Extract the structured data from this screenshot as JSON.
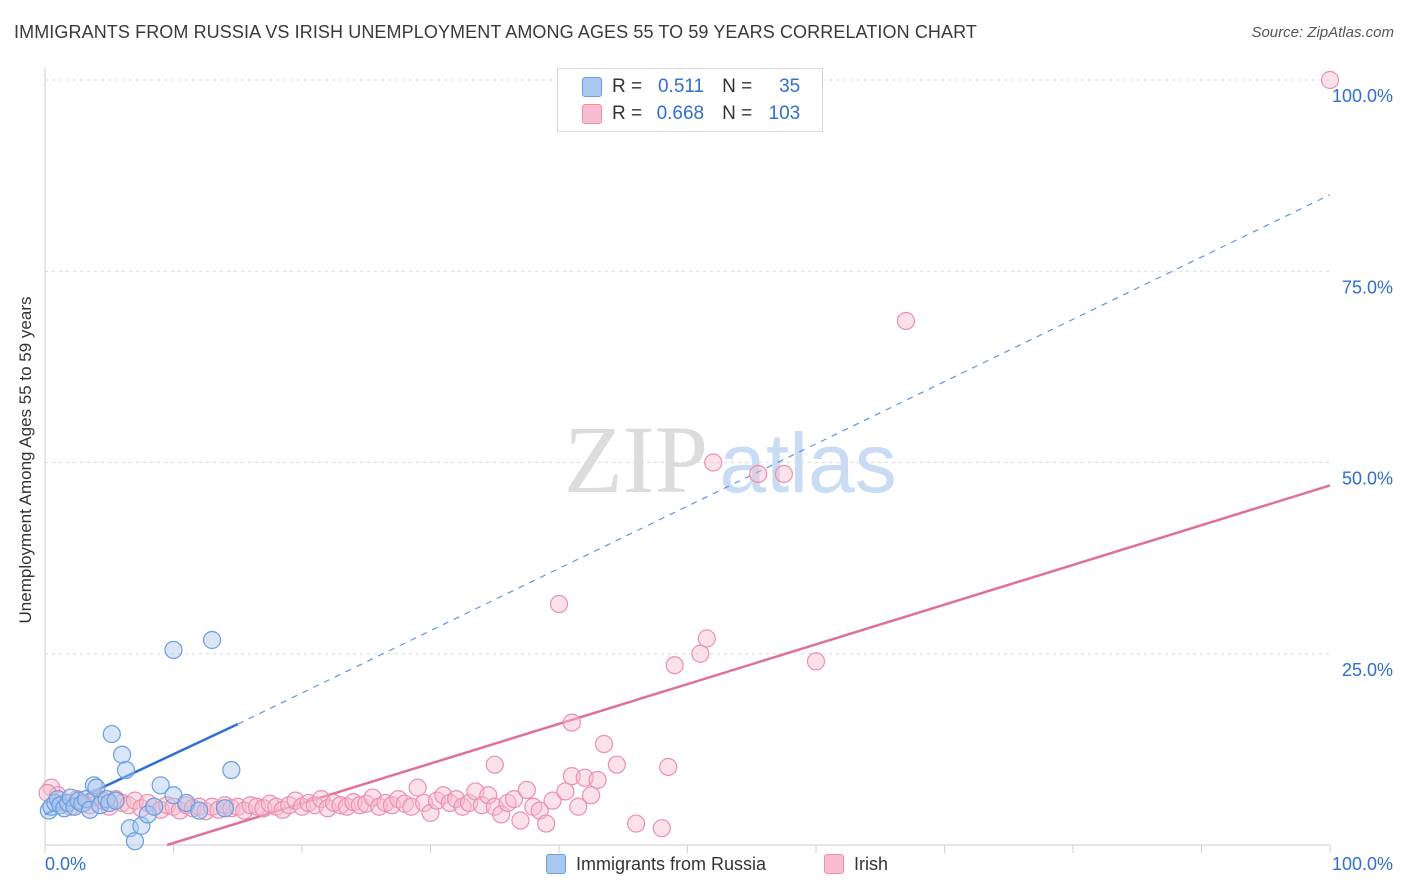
{
  "header": {
    "title": "IMMIGRANTS FROM RUSSIA VS IRISH UNEMPLOYMENT AMONG AGES 55 TO 59 YEARS CORRELATION CHART",
    "source": "Source: ZipAtlas.com"
  },
  "watermark": {
    "zip": "ZIP",
    "atlas": "atlas"
  },
  "legend": {
    "r_label": "R =",
    "n_label": "N =",
    "rows": [
      {
        "r": "0.511",
        "n": "35",
        "color": "#a9c8f0",
        "border": "#6a9ee0"
      },
      {
        "r": "0.668",
        "n": "103",
        "color": "#f7bcd0",
        "border": "#ec8fae"
      }
    ]
  },
  "chart_data": {
    "type": "scatter",
    "title": "IMMIGRANTS FROM RUSSIA VS IRISH UNEMPLOYMENT AMONG AGES 55 TO 59 YEARS CORRELATION CHART",
    "xlabel": "",
    "ylabel": "Unemployment Among Ages 55 to 59 years",
    "xlim": [
      0,
      100
    ],
    "ylim": [
      0,
      100
    ],
    "x_tick_labels": [
      "0.0%",
      "100.0%"
    ],
    "y_ticks": [
      25,
      50,
      75,
      100
    ],
    "y_tick_labels": [
      "25.0%",
      "50.0%",
      "75.0%",
      "100.0%"
    ],
    "grid": true,
    "series": [
      {
        "name": "Immigrants from Russia",
        "color": "#6a9ee0",
        "fill": "#a9c8f0",
        "trend": {
          "solid": [
            [
              0,
              4.0
            ],
            [
              15,
              15.8
            ]
          ],
          "dashed": [
            [
              15,
              15.8
            ],
            [
              100,
              85.0
            ]
          ],
          "color": "#2e6fd0"
        },
        "points": [
          [
            0.3,
            4.5
          ],
          [
            0.5,
            5.0
          ],
          [
            0.8,
            5.5
          ],
          [
            1.0,
            6.0
          ],
          [
            1.2,
            5.2
          ],
          [
            1.5,
            4.8
          ],
          [
            1.8,
            5.5
          ],
          [
            2.0,
            6.2
          ],
          [
            2.3,
            5.0
          ],
          [
            2.6,
            5.8
          ],
          [
            2.9,
            5.4
          ],
          [
            3.2,
            6.0
          ],
          [
            3.5,
            4.6
          ],
          [
            3.8,
            7.8
          ],
          [
            4.0,
            7.5
          ],
          [
            4.3,
            5.2
          ],
          [
            4.8,
            6.0
          ],
          [
            5.0,
            5.5
          ],
          [
            5.5,
            5.8
          ],
          [
            6.0,
            11.8
          ],
          [
            6.3,
            9.8
          ],
          [
            6.6,
            2.2
          ],
          [
            7.0,
            0.5
          ],
          [
            7.5,
            2.5
          ],
          [
            8.0,
            4.0
          ],
          [
            8.5,
            5.0
          ],
          [
            9.0,
            7.8
          ],
          [
            10.0,
            6.5
          ],
          [
            11.0,
            5.5
          ],
          [
            12.0,
            4.5
          ],
          [
            14.0,
            4.8
          ],
          [
            5.2,
            14.5
          ],
          [
            10.0,
            25.5
          ],
          [
            13.0,
            26.8
          ],
          [
            14.5,
            9.8
          ]
        ]
      },
      {
        "name": "Irish",
        "color": "#ec8fae",
        "fill": "#f7bcd0",
        "trend": {
          "solid": [
            [
              9.5,
              0.0
            ],
            [
              100,
              47.0
            ]
          ],
          "color": "#e0709a"
        },
        "points": [
          [
            0.5,
            7.5
          ],
          [
            1,
            6.5
          ],
          [
            1.5,
            5.5
          ],
          [
            2,
            5.0
          ],
          [
            2.5,
            6.0
          ],
          [
            3,
            5.5
          ],
          [
            3.5,
            5.2
          ],
          [
            4,
            6.2
          ],
          [
            4.5,
            5.8
          ],
          [
            5,
            5.0
          ],
          [
            5.5,
            6.0
          ],
          [
            6,
            5.5
          ],
          [
            6.5,
            5.2
          ],
          [
            7,
            5.8
          ],
          [
            7.5,
            4.8
          ],
          [
            8,
            5.5
          ],
          [
            8.5,
            5.0
          ],
          [
            9,
            4.6
          ],
          [
            9.5,
            5.2
          ],
          [
            10,
            5.0
          ],
          [
            10.5,
            4.5
          ],
          [
            11,
            5.2
          ],
          [
            11.5,
            4.8
          ],
          [
            12,
            5.0
          ],
          [
            12.5,
            4.4
          ],
          [
            13,
            5.0
          ],
          [
            13.5,
            4.6
          ],
          [
            14,
            5.2
          ],
          [
            14.5,
            4.8
          ],
          [
            15,
            5.0
          ],
          [
            15.5,
            4.5
          ],
          [
            16,
            5.2
          ],
          [
            16.5,
            5.0
          ],
          [
            17,
            4.8
          ],
          [
            17.5,
            5.4
          ],
          [
            18,
            5.0
          ],
          [
            18.5,
            4.6
          ],
          [
            19,
            5.2
          ],
          [
            19.5,
            5.8
          ],
          [
            20,
            5.0
          ],
          [
            20.5,
            5.5
          ],
          [
            21,
            5.2
          ],
          [
            21.5,
            6.0
          ],
          [
            22,
            4.8
          ],
          [
            22.5,
            5.5
          ],
          [
            23,
            5.2
          ],
          [
            23.5,
            5.0
          ],
          [
            24,
            5.6
          ],
          [
            24.5,
            5.2
          ],
          [
            25,
            5.4
          ],
          [
            25.5,
            6.2
          ],
          [
            26,
            5.0
          ],
          [
            26.5,
            5.5
          ],
          [
            27,
            5.2
          ],
          [
            27.5,
            6.0
          ],
          [
            28,
            5.4
          ],
          [
            28.5,
            5.0
          ],
          [
            29,
            7.5
          ],
          [
            29.5,
            5.5
          ],
          [
            30,
            4.2
          ],
          [
            30.5,
            5.8
          ],
          [
            31,
            6.5
          ],
          [
            31.5,
            5.5
          ],
          [
            32,
            6.0
          ],
          [
            32.5,
            5.0
          ],
          [
            33,
            5.5
          ],
          [
            33.5,
            7.0
          ],
          [
            34,
            5.2
          ],
          [
            34.5,
            6.5
          ],
          [
            35,
            5.0
          ],
          [
            35.5,
            4.0
          ],
          [
            36,
            5.5
          ],
          [
            36.5,
            6.0
          ],
          [
            37,
            3.2
          ],
          [
            37.5,
            7.2
          ],
          [
            38,
            5.0
          ],
          [
            38.5,
            4.5
          ],
          [
            39,
            2.8
          ],
          [
            39.5,
            5.8
          ],
          [
            40.5,
            7.0
          ],
          [
            41,
            9.0
          ],
          [
            41.5,
            5.0
          ],
          [
            42,
            8.8
          ],
          [
            42.5,
            6.5
          ],
          [
            43,
            8.5
          ],
          [
            43.5,
            13.2
          ],
          [
            44.5,
            10.5
          ],
          [
            46,
            2.8
          ],
          [
            48.5,
            10.2
          ],
          [
            48,
            2.2
          ],
          [
            35,
            10.5
          ],
          [
            40,
            31.5
          ],
          [
            41,
            16.0
          ],
          [
            49,
            23.5
          ],
          [
            51,
            25.0
          ],
          [
            51.5,
            27.0
          ],
          [
            60,
            24.0
          ],
          [
            52,
            50.0
          ],
          [
            57.5,
            48.5
          ],
          [
            55.5,
            48.5
          ],
          [
            67,
            68.5
          ],
          [
            100,
            100.0
          ],
          [
            0.2,
            6.8
          ]
        ]
      }
    ],
    "legend": [
      "Immigrants from Russia",
      "Irish"
    ]
  }
}
